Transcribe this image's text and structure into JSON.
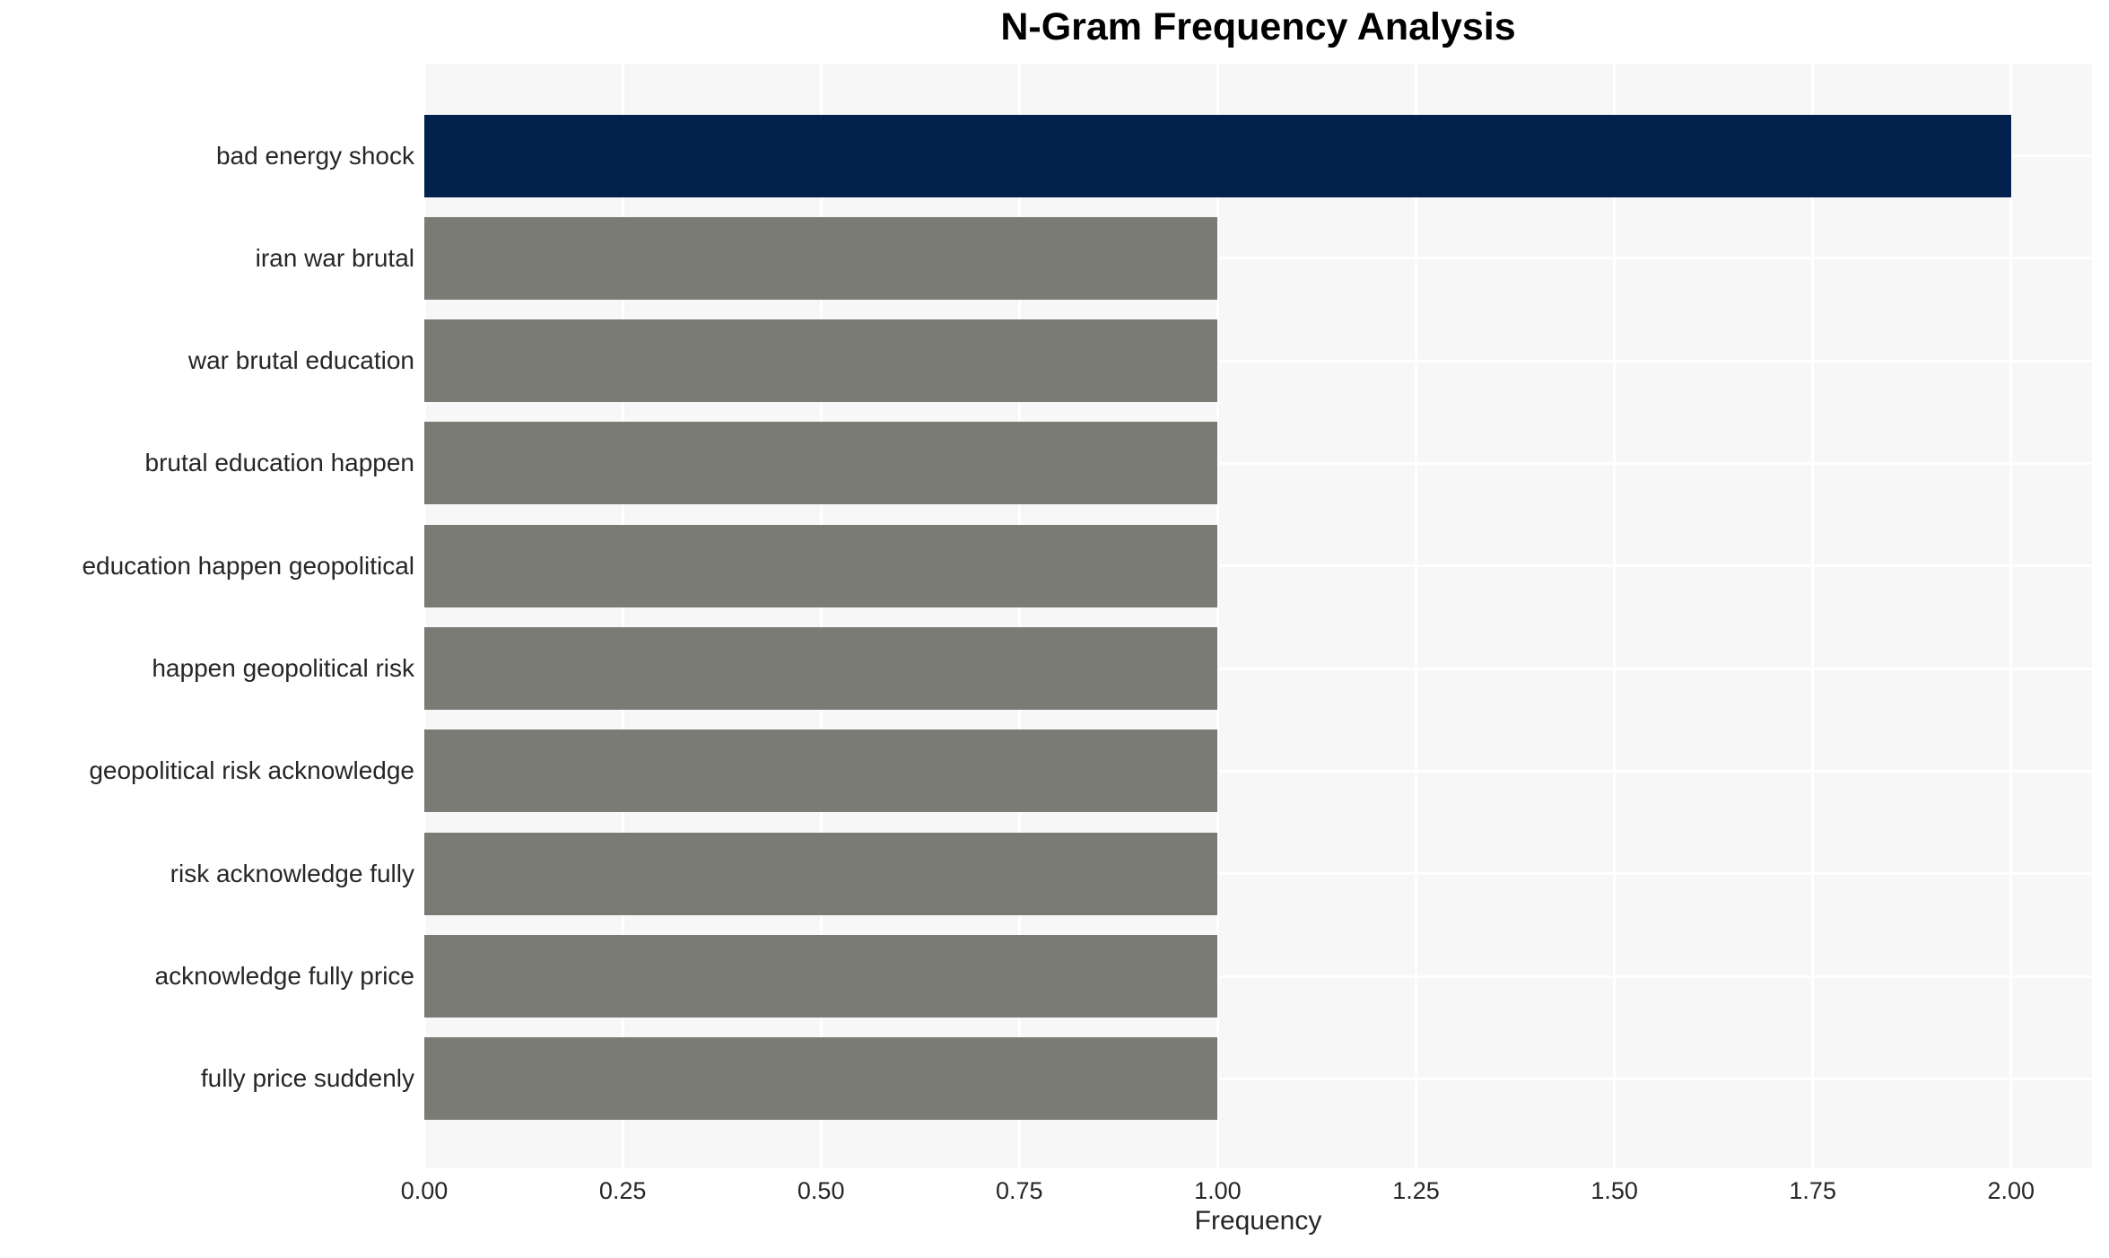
{
  "chart_data": {
    "type": "bar",
    "orientation": "horizontal",
    "title": "N-Gram Frequency Analysis",
    "xlabel": "Frequency",
    "ylabel": "",
    "categories": [
      "bad energy shock",
      "iran war brutal",
      "war brutal education",
      "brutal education happen",
      "education happen geopolitical",
      "happen geopolitical risk",
      "geopolitical risk acknowledge",
      "risk acknowledge fully",
      "acknowledge fully price",
      "fully price suddenly"
    ],
    "values": [
      2,
      1,
      1,
      1,
      1,
      1,
      1,
      1,
      1,
      1
    ],
    "bar_colors": [
      "#02224d",
      "#7b7b76",
      "#7b7b76",
      "#7b7b76",
      "#7b7b76",
      "#7b7b76",
      "#7b7b76",
      "#7b7b76",
      "#7b7b76",
      "#7b7b76"
    ],
    "highlight_color": "#02224d",
    "default_bar_color": "#7b7b76",
    "xticks": [
      0,
      0.25,
      0.5,
      0.75,
      1.0,
      1.25,
      1.5,
      1.75,
      2.0
    ],
    "xtick_labels": [
      "0.00",
      "0.25",
      "0.50",
      "0.75",
      "1.00",
      "1.25",
      "1.50",
      "1.75",
      "2.00"
    ],
    "xlim": [
      0,
      2.102
    ],
    "grid": true,
    "grid_color": "#ffffff",
    "panel_background": "#f7f7f7",
    "text_color": "#262626",
    "legend": false
  }
}
